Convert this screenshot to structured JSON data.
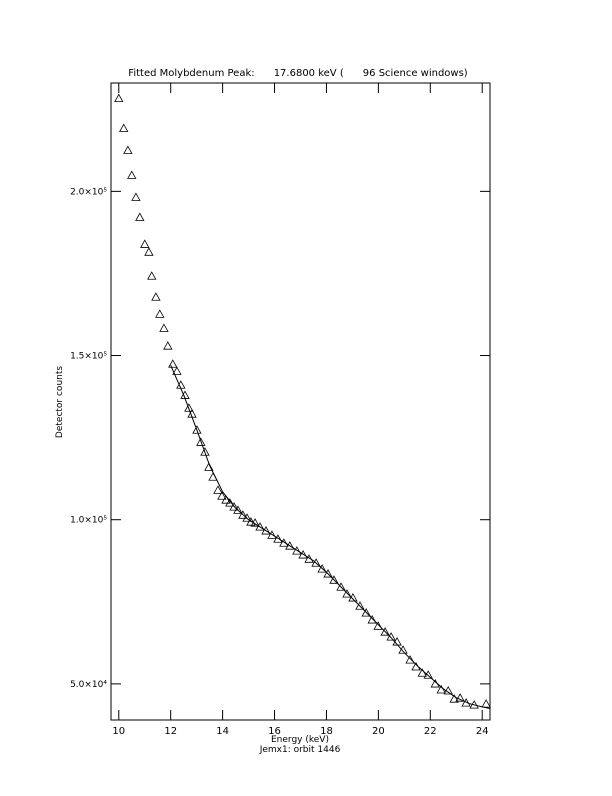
{
  "chart_data": {
    "type": "scatter",
    "title": "Fitted Molybdenum Peak:      17.6800 keV (      96 Science windows)",
    "x_label": "Energy (keV)",
    "x_sublabel": "Jemx1: orbit 1446",
    "y_label": "Detector counts",
    "xlim": [
      9.7,
      24.3
    ],
    "ylim": [
      39000,
      233000
    ],
    "xticks": [
      10,
      12,
      14,
      16,
      18,
      20,
      22,
      24
    ],
    "yticks": [
      {
        "value": 50000,
        "label": "5.0×10⁴"
      },
      {
        "value": 100000,
        "label": "1.0×10⁵"
      },
      {
        "value": 150000,
        "label": "1.5×10⁵"
      },
      {
        "value": 200000,
        "label": "2.0×10⁵"
      }
    ],
    "series": [
      {
        "type": "scatter",
        "marker": "triangle",
        "color": "#000000",
        "x": [
          10.0,
          10.19,
          10.35,
          10.5,
          10.66,
          10.81,
          11.0,
          11.16,
          11.27,
          11.43,
          11.58,
          11.74,
          11.89,
          12.08,
          12.24,
          12.39,
          12.55,
          12.7,
          12.82,
          13.01,
          13.16,
          13.32,
          13.47,
          13.63,
          13.82,
          13.97,
          14.13,
          14.28,
          14.44,
          14.59,
          14.78,
          14.94,
          15.09,
          15.25,
          15.44,
          15.67,
          15.9,
          16.13,
          16.36,
          16.59,
          16.86,
          17.1,
          17.33,
          17.6,
          17.83,
          18.06,
          18.29,
          18.56,
          18.79,
          19.02,
          19.29,
          19.53,
          19.76,
          19.99,
          20.26,
          20.49,
          20.72,
          20.95,
          21.22,
          21.45,
          21.69,
          21.92,
          22.19,
          22.42,
          22.69,
          22.92,
          23.15,
          23.38,
          23.69,
          24.15
        ],
        "values": [
          228300,
          219200,
          212500,
          204900,
          198200,
          192100,
          183900,
          181500,
          174200,
          167800,
          162600,
          158300,
          152900,
          147400,
          145200,
          141000,
          137900,
          134000,
          132200,
          127300,
          123600,
          120600,
          116000,
          113000,
          109000,
          107200,
          106000,
          105100,
          103900,
          102900,
          101400,
          100500,
          99300,
          99000,
          97800,
          96600,
          95300,
          94100,
          92900,
          92000,
          90500,
          89300,
          88000,
          86800,
          85000,
          83500,
          81600,
          79500,
          77400,
          76200,
          73700,
          71600,
          69500,
          67600,
          65800,
          64300,
          62800,
          60300,
          57300,
          55200,
          53300,
          52700,
          50000,
          48200,
          47900,
          45400,
          45700,
          44200,
          43600,
          43900
        ]
      },
      {
        "type": "line",
        "color": "#000000",
        "x": [
          12.0,
          12.5,
          13.0,
          13.5,
          14.0,
          14.5,
          15.0,
          15.5,
          16.0,
          16.5,
          17.0,
          17.5,
          18.0,
          18.5,
          19.0,
          19.5,
          20.0,
          20.5,
          21.0,
          21.5,
          22.0,
          22.5,
          23.0,
          23.5,
          24.0,
          24.3
        ],
        "values": [
          147000,
          138000,
          127500,
          116500,
          108500,
          103500,
          100000,
          97500,
          95000,
          92500,
          90000,
          87500,
          84000,
          80000,
          76000,
          72000,
          68000,
          64000,
          59500,
          55500,
          52000,
          48500,
          45800,
          44000,
          43000,
          42500
        ]
      }
    ]
  }
}
